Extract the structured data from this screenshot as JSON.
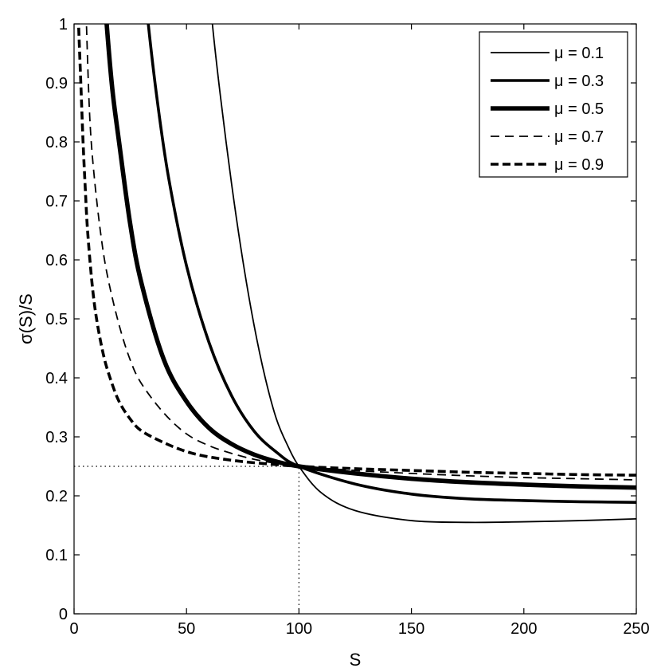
{
  "chart_data": {
    "type": "line",
    "title": "",
    "xlabel": "S",
    "ylabel": "σ(S)/S",
    "xlim": [
      0,
      250
    ],
    "ylim": [
      0,
      1
    ],
    "xticks": [
      0,
      50,
      100,
      150,
      200,
      250
    ],
    "yticks": [
      0,
      0.1,
      0.2,
      0.3,
      0.4,
      0.5,
      0.6,
      0.7,
      0.8,
      0.9,
      1
    ],
    "grid": false,
    "legend_position": "top-right",
    "reference_lines": [
      {
        "orientation": "horizontal",
        "value": 0.25,
        "style": "dotted",
        "from": 0,
        "to": 100
      },
      {
        "orientation": "vertical",
        "value": 100,
        "style": "dotted",
        "from": 0,
        "to": 0.25
      }
    ],
    "series": [
      {
        "name": "μ = 0.1",
        "style": "solid",
        "weight": "thin",
        "x": [
          61.5,
          65,
          70,
          75,
          80,
          85,
          90,
          95,
          100,
          110,
          125,
          150,
          175,
          200,
          225,
          250
        ],
        "y": [
          1.0,
          0.88,
          0.73,
          0.6,
          0.49,
          0.4,
          0.33,
          0.285,
          0.25,
          0.205,
          0.175,
          0.158,
          0.155,
          0.156,
          0.158,
          0.161
        ]
      },
      {
        "name": "μ = 0.3",
        "style": "solid",
        "weight": "bold",
        "x": [
          33,
          37,
          42,
          50,
          60,
          70,
          80,
          90,
          100,
          125,
          150,
          175,
          200,
          225,
          250
        ],
        "y": [
          1.0,
          0.87,
          0.74,
          0.59,
          0.46,
          0.37,
          0.31,
          0.274,
          0.25,
          0.22,
          0.203,
          0.195,
          0.192,
          0.19,
          0.189
        ]
      },
      {
        "name": "μ = 0.5",
        "style": "solid",
        "weight": "heavy",
        "x": [
          14.5,
          17,
          20,
          25,
          30,
          40,
          50,
          60,
          70,
          80,
          90,
          100,
          125,
          150,
          175,
          200,
          225,
          250
        ],
        "y": [
          1.0,
          0.89,
          0.8,
          0.66,
          0.56,
          0.43,
          0.36,
          0.315,
          0.288,
          0.27,
          0.258,
          0.25,
          0.238,
          0.229,
          0.223,
          0.219,
          0.216,
          0.214
        ]
      },
      {
        "name": "μ = 0.7",
        "style": "dashed",
        "weight": "thin",
        "x": [
          5.5,
          7,
          9,
          12,
          15,
          20,
          25,
          30,
          40,
          50,
          60,
          70,
          80,
          90,
          100,
          125,
          150,
          175,
          200,
          225,
          250
        ],
        "y": [
          1.0,
          0.84,
          0.74,
          0.64,
          0.57,
          0.49,
          0.43,
          0.39,
          0.34,
          0.305,
          0.285,
          0.272,
          0.262,
          0.255,
          0.25,
          0.243,
          0.238,
          0.234,
          0.231,
          0.229,
          0.227
        ]
      },
      {
        "name": "μ = 0.9",
        "style": "dashed",
        "weight": "bold",
        "x": [
          2,
          3,
          4,
          5,
          6,
          8,
          10,
          13,
          16,
          20,
          25,
          30,
          40,
          50,
          60,
          75,
          90,
          100,
          125,
          150,
          175,
          200,
          225,
          250
        ],
        "y": [
          1.0,
          0.9,
          0.8,
          0.72,
          0.65,
          0.56,
          0.5,
          0.44,
          0.4,
          0.36,
          0.33,
          0.31,
          0.29,
          0.275,
          0.266,
          0.258,
          0.253,
          0.25,
          0.246,
          0.243,
          0.24,
          0.238,
          0.236,
          0.235
        ]
      }
    ]
  }
}
